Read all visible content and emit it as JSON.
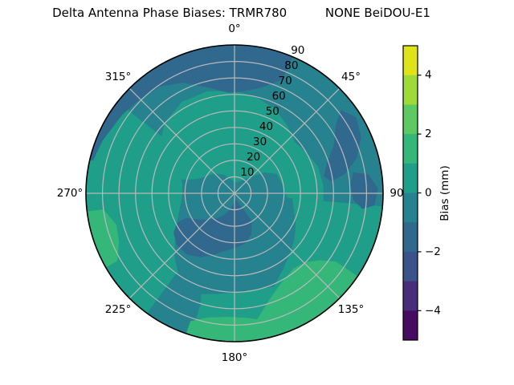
{
  "chart_data": {
    "type": "polar_contour_filled",
    "title": "Delta Antenna Phase Biases: TRMR780          NONE BeiDOU-E1",
    "theta_ticks": [
      {
        "angle": 0,
        "label": "0°"
      },
      {
        "angle": 45,
        "label": "45°"
      },
      {
        "angle": 90,
        "label": "90"
      },
      {
        "angle": 135,
        "label": "135°"
      },
      {
        "angle": 180,
        "label": "180°"
      },
      {
        "angle": 225,
        "label": "225°"
      },
      {
        "angle": 270,
        "label": "270°"
      },
      {
        "angle": 315,
        "label": "315°"
      }
    ],
    "r_ticks": [
      10,
      20,
      30,
      40,
      50,
      60,
      70,
      80,
      90
    ],
    "r_max": 90,
    "r_label_angle": 22.5,
    "grid_color": "#b9b9b9",
    "outline_color": "#000000",
    "base_color": "#26828e",
    "base_bin_mm": "[-1,0)",
    "bias_bins_mm": {
      "[-2,-1)": "#31688e",
      "[-1,0)": "#26828e",
      "[0,1)": "#1f9e89",
      "[1,2)": "#35b779"
    },
    "regions": [
      {
        "name": "inner-north-band",
        "bin_mm": "[0,1)",
        "color": "#1f9e89",
        "points": [
          [
            -75,
            42
          ],
          [
            -60,
            53
          ],
          [
            -45,
            60
          ],
          [
            -30,
            64
          ],
          [
            -15,
            64
          ],
          [
            0,
            62
          ],
          [
            12,
            60
          ],
          [
            25,
            57
          ],
          [
            38,
            52
          ],
          [
            50,
            48
          ],
          [
            60,
            50
          ],
          [
            72,
            53
          ],
          [
            85,
            54
          ],
          [
            95,
            54
          ],
          [
            95,
            32
          ],
          [
            85,
            30
          ],
          [
            75,
            29
          ],
          [
            65,
            28
          ],
          [
            55,
            22
          ],
          [
            45,
            14
          ],
          [
            30,
            9
          ],
          [
            15,
            7
          ],
          [
            0,
            7
          ],
          [
            -15,
            9
          ],
          [
            -30,
            13
          ],
          [
            -45,
            17
          ],
          [
            -60,
            20
          ],
          [
            -70,
            25
          ],
          [
            -75,
            32
          ]
        ]
      },
      {
        "name": "west-outer-band",
        "bin_mm": "[0,1)",
        "color": "#1f9e89",
        "points": [
          [
            212,
            97
          ],
          [
            230,
            97
          ],
          [
            250,
            97
          ],
          [
            270,
            97
          ],
          [
            290,
            97
          ],
          [
            308,
            97
          ],
          [
            308,
            48
          ],
          [
            295,
            38
          ],
          [
            280,
            32
          ],
          [
            265,
            32
          ],
          [
            250,
            36
          ],
          [
            235,
            44
          ],
          [
            222,
            54
          ],
          [
            212,
            62
          ]
        ]
      },
      {
        "name": "southeast-band",
        "bin_mm": "[0,1)",
        "color": "#1f9e89",
        "points": [
          [
            95,
            97
          ],
          [
            110,
            97
          ],
          [
            125,
            97
          ],
          [
            140,
            97
          ],
          [
            155,
            97
          ],
          [
            168,
            97
          ],
          [
            168,
            72
          ],
          [
            158,
            62
          ],
          [
            148,
            55
          ],
          [
            138,
            50
          ],
          [
            128,
            46
          ],
          [
            118,
            42
          ],
          [
            108,
            38
          ],
          [
            100,
            36
          ],
          [
            95,
            35
          ]
        ]
      },
      {
        "name": "south-rim-band",
        "bin_mm": "[0,1)",
        "color": "#1f9e89",
        "points": [
          [
            148,
            97
          ],
          [
            160,
            97
          ],
          [
            175,
            97
          ],
          [
            190,
            97
          ],
          [
            202,
            97
          ],
          [
            202,
            66
          ],
          [
            190,
            62
          ],
          [
            178,
            60
          ],
          [
            165,
            60
          ],
          [
            155,
            62
          ],
          [
            148,
            65
          ]
        ]
      },
      {
        "name": "south-teal-wedge",
        "bin_mm": "[-1,0)",
        "color": "#26828e",
        "points": [
          [
            197,
            97
          ],
          [
            208,
            97
          ],
          [
            216,
            97
          ],
          [
            216,
            60
          ],
          [
            208,
            55
          ],
          [
            200,
            58
          ],
          [
            197,
            70
          ]
        ]
      },
      {
        "name": "north-cap",
        "bin_mm": "[-2,-1)",
        "color": "#31688e",
        "points": [
          [
            -77,
            97
          ],
          [
            -60,
            97
          ],
          [
            -45,
            97
          ],
          [
            -30,
            97
          ],
          [
            -15,
            97
          ],
          [
            0,
            97
          ],
          [
            10,
            97
          ],
          [
            23,
            97
          ],
          [
            23,
            75
          ],
          [
            14,
            66
          ],
          [
            5,
            62
          ],
          [
            -3,
            61
          ],
          [
            -12,
            65
          ],
          [
            -25,
            74
          ],
          [
            -35,
            79
          ],
          [
            -45,
            81
          ],
          [
            -55,
            83
          ],
          [
            -68,
            86
          ],
          [
            -77,
            88
          ]
        ]
      },
      {
        "name": "northeast-streak",
        "bin_mm": "[-2,-1)",
        "color": "#31688e",
        "points": [
          [
            52,
            82
          ],
          [
            58,
            87
          ],
          [
            66,
            84
          ],
          [
            74,
            77
          ],
          [
            80,
            68
          ],
          [
            83,
            59
          ],
          [
            79,
            55
          ],
          [
            72,
            59
          ],
          [
            64,
            67
          ],
          [
            56,
            74
          ]
        ]
      },
      {
        "name": "east-rim-patch",
        "bin_mm": "[-2,-1)",
        "color": "#31688e",
        "points": [
          [
            80,
            73
          ],
          [
            86,
            70
          ],
          [
            93,
            72
          ],
          [
            97,
            78
          ],
          [
            95,
            85
          ],
          [
            88,
            87
          ],
          [
            82,
            82
          ]
        ]
      },
      {
        "name": "south-blob",
        "bin_mm": "[-2,-1)",
        "color": "#31688e",
        "points": [
          [
            148,
            20
          ],
          [
            158,
            27
          ],
          [
            168,
            31
          ],
          [
            178,
            33
          ],
          [
            188,
            35
          ],
          [
            198,
            39
          ],
          [
            208,
            44
          ],
          [
            218,
            47
          ],
          [
            228,
            47
          ],
          [
            237,
            44
          ],
          [
            243,
            39
          ],
          [
            243,
            33
          ],
          [
            234,
            27
          ],
          [
            224,
            22
          ],
          [
            214,
            18
          ],
          [
            204,
            14
          ],
          [
            194,
            10
          ],
          [
            184,
            6
          ],
          [
            176,
            4
          ],
          [
            166,
            4
          ],
          [
            156,
            8
          ],
          [
            150,
            13
          ]
        ]
      },
      {
        "name": "southeast-bright-arc",
        "bin_mm": "[1,2)",
        "color": "#35b779",
        "points": [
          [
            124,
            97
          ],
          [
            135,
            97
          ],
          [
            146,
            97
          ],
          [
            157,
            97
          ],
          [
            170,
            97
          ],
          [
            170,
            78
          ],
          [
            162,
            68
          ],
          [
            152,
            61
          ],
          [
            142,
            58
          ],
          [
            134,
            60
          ],
          [
            128,
            66
          ],
          [
            124,
            74
          ]
        ]
      },
      {
        "name": "south-bright-rim",
        "bin_mm": "[1,2)",
        "color": "#35b779",
        "points": [
          [
            163,
            97
          ],
          [
            175,
            97
          ],
          [
            188,
            97
          ],
          [
            199,
            97
          ],
          [
            199,
            82
          ],
          [
            192,
            77
          ],
          [
            183,
            75
          ],
          [
            174,
            76
          ],
          [
            167,
            79
          ],
          [
            163,
            82
          ]
        ]
      },
      {
        "name": "west-bright-sliver",
        "bin_mm": "[1,2)",
        "color": "#35b779",
        "points": [
          [
            240,
            97
          ],
          [
            248,
            97
          ],
          [
            256,
            97
          ],
          [
            263,
            97
          ],
          [
            263,
            80
          ],
          [
            255,
            74
          ],
          [
            247,
            76
          ],
          [
            240,
            82
          ]
        ]
      }
    ],
    "colorbar": {
      "label": "Bias (mm)",
      "vmin": -5,
      "vmax": 5,
      "ticks": [
        {
          "value": 4,
          "label": "4"
        },
        {
          "value": 2,
          "label": "2"
        },
        {
          "value": 0,
          "label": "0"
        },
        {
          "value": -2,
          "label": "−2"
        },
        {
          "value": -4,
          "label": "−4"
        }
      ],
      "segment_colors_top_to_bottom": [
        "#dfe318",
        "#a0da39",
        "#5ec962",
        "#35b779",
        "#1f9e89",
        "#26828e",
        "#31688e",
        "#3b528b",
        "#472d7b",
        "#460c5f"
      ]
    }
  }
}
